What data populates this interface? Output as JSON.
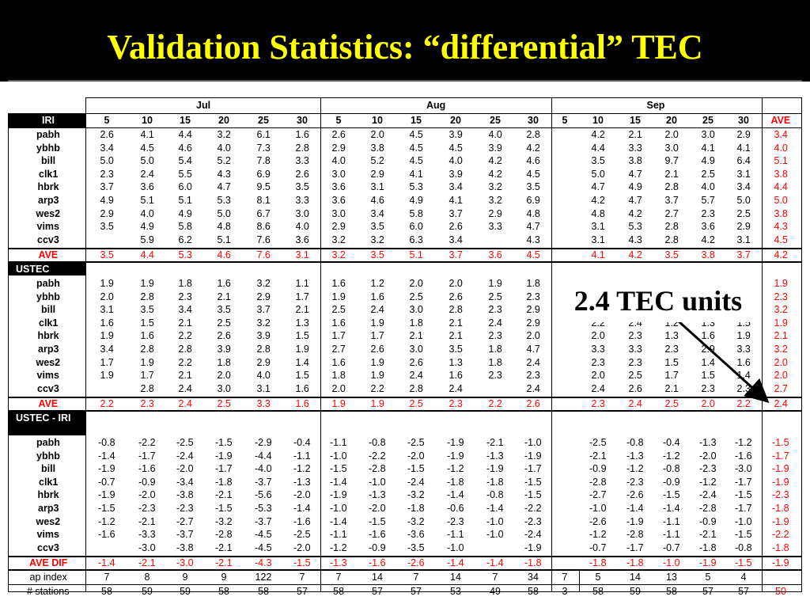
{
  "title": "Validation Statistics: “differential” TEC",
  "callout": "2.4 TEC units",
  "months": [
    "Jul",
    "Aug",
    "Sep"
  ],
  "days": {
    "jul": [
      "5",
      "10",
      "15",
      "20",
      "25",
      "30"
    ],
    "aug": [
      "5",
      "10",
      "15",
      "20",
      "25",
      "30"
    ],
    "sep": [
      "5",
      "10",
      "15",
      "20",
      "25",
      "30"
    ]
  },
  "ave_label": "AVE",
  "sections": [
    {
      "header": "IRI",
      "rows": [
        {
          "station": "pabh",
          "jul": [
            "2.6",
            "4.1",
            "4.4",
            "3.2",
            "6.1",
            "1.6"
          ],
          "aug": [
            "2.6",
            "2.0",
            "4.5",
            "3.9",
            "4.0",
            "2.8"
          ],
          "sep5": "",
          "sep": [
            "4.2",
            "2.1",
            "2.0",
            "3.0",
            "2.9"
          ],
          "ave": "3.4"
        },
        {
          "station": "ybhb",
          "jul": [
            "3.4",
            "4.5",
            "4.6",
            "4.0",
            "7.3",
            "2.8"
          ],
          "aug": [
            "2.9",
            "3.8",
            "4.5",
            "4.5",
            "3.9",
            "4.2"
          ],
          "sep5": "",
          "sep": [
            "4.4",
            "3.3",
            "3.0",
            "4.1",
            "4.1"
          ],
          "ave": "4.0"
        },
        {
          "station": "bill",
          "jul": [
            "5.0",
            "5.0",
            "5.4",
            "5.2",
            "7.8",
            "3.3"
          ],
          "aug": [
            "4.0",
            "5.2",
            "4.5",
            "4.0",
            "4.2",
            "4.6"
          ],
          "sep5": "",
          "sep": [
            "3.5",
            "3.8",
            "9.7",
            "4.9",
            "6.4"
          ],
          "ave": "5.1"
        },
        {
          "station": "clk1",
          "jul": [
            "2.3",
            "2.4",
            "5.5",
            "4.3",
            "6.9",
            "2.6"
          ],
          "aug": [
            "3.0",
            "2.9",
            "4.1",
            "3.9",
            "4.2",
            "4.5"
          ],
          "sep5": "",
          "sep": [
            "5.0",
            "4.7",
            "2.1",
            "2.5",
            "3.1"
          ],
          "ave": "3.8"
        },
        {
          "station": "hbrk",
          "jul": [
            "3.7",
            "3.6",
            "6.0",
            "4.7",
            "9.5",
            "3.5"
          ],
          "aug": [
            "3.6",
            "3.1",
            "5.3",
            "3.4",
            "3.2",
            "3.5"
          ],
          "sep5": "",
          "sep": [
            "4.7",
            "4.9",
            "2.8",
            "4.0",
            "3.4"
          ],
          "ave": "4.4"
        },
        {
          "station": "arp3",
          "jul": [
            "4.9",
            "5.1",
            "5.1",
            "5.3",
            "8.1",
            "3.3"
          ],
          "aug": [
            "3.6",
            "4.6",
            "4.9",
            "4.1",
            "3.2",
            "6.9"
          ],
          "sep5": "",
          "sep": [
            "4.2",
            "4.7",
            "3.7",
            "5.7",
            "5.0"
          ],
          "ave": "5.0"
        },
        {
          "station": "wes2",
          "jul": [
            "2.9",
            "4.0",
            "4.9",
            "5.0",
            "6.7",
            "3.0"
          ],
          "aug": [
            "3.0",
            "3.4",
            "5.8",
            "3.7",
            "2.9",
            "4.8"
          ],
          "sep5": "",
          "sep": [
            "4.8",
            "4.2",
            "2.7",
            "2.3",
            "2.5"
          ],
          "ave": "3.8"
        },
        {
          "station": "vims",
          "jul": [
            "3.5",
            "4.9",
            "5.8",
            "4.8",
            "8.6",
            "4.0"
          ],
          "aug": [
            "2.9",
            "3.5",
            "6.0",
            "2.6",
            "3.3",
            "4.7"
          ],
          "sep5": "",
          "sep": [
            "3.1",
            "5.3",
            "2.8",
            "3.6",
            "2.9"
          ],
          "ave": "4.3"
        },
        {
          "station": "ccv3",
          "jul": [
            "",
            "5.9",
            "6.2",
            "5.1",
            "7.6",
            "3.6"
          ],
          "aug": [
            "3.2",
            "3.2",
            "6.3",
            "3.4",
            "",
            "4.3"
          ],
          "sep5": "",
          "sep": [
            "3.1",
            "4.3",
            "2.8",
            "4.2",
            "3.1"
          ],
          "ave": "4.5"
        }
      ],
      "ave": {
        "label": "AVE",
        "jul": [
          "3.5",
          "4.4",
          "5.3",
          "4.6",
          "7.6",
          "3.1"
        ],
        "aug": [
          "3.2",
          "3.5",
          "5.1",
          "3.7",
          "3.6",
          "4.5"
        ],
        "sep5": "",
        "sep": [
          "4.1",
          "4.2",
          "3.5",
          "3.8",
          "3.7"
        ],
        "ave": "4.2"
      }
    },
    {
      "header": "USTEC",
      "rows": [
        {
          "station": "pabh",
          "jul": [
            "1.9",
            "1.9",
            "1.8",
            "1.6",
            "3.2",
            "1.1"
          ],
          "aug": [
            "1.6",
            "1.2",
            "2.0",
            "2.0",
            "1.9",
            "1.8"
          ],
          "sep5": "",
          "sep": [
            "",
            "",
            "",
            "",
            ""
          ],
          "ave": "1.9"
        },
        {
          "station": "ybhb",
          "jul": [
            "2.0",
            "2.8",
            "2.3",
            "2.1",
            "2.9",
            "1.7"
          ],
          "aug": [
            "1.9",
            "1.6",
            "2.5",
            "2.6",
            "2.5",
            "2.3"
          ],
          "sep5": "",
          "sep": [
            "",
            "",
            "",
            "",
            ""
          ],
          "ave": "2.3"
        },
        {
          "station": "bill",
          "jul": [
            "3.1",
            "3.5",
            "3.4",
            "3.5",
            "3.7",
            "2.1"
          ],
          "aug": [
            "2.5",
            "2.4",
            "3.0",
            "2.8",
            "2.3",
            "2.9"
          ],
          "sep5": "",
          "sep": [
            "",
            "",
            "",
            "",
            ""
          ],
          "ave": "3.2"
        },
        {
          "station": "clk1",
          "jul": [
            "1.6",
            "1.5",
            "2.1",
            "2.5",
            "3.2",
            "1.3"
          ],
          "aug": [
            "1.6",
            "1.9",
            "1.8",
            "2.1",
            "2.4",
            "2.9"
          ],
          "sep5": "",
          "sep": [
            "2.2",
            "2.4",
            "1.2",
            "1.3",
            "1.5"
          ],
          "ave": "1.9"
        },
        {
          "station": "hbrk",
          "jul": [
            "1.9",
            "1.6",
            "2.2",
            "2.6",
            "3.9",
            "1.5"
          ],
          "aug": [
            "1.7",
            "1.7",
            "2.1",
            "2.1",
            "2.3",
            "2.0"
          ],
          "sep5": "",
          "sep": [
            "2.0",
            "2.3",
            "1.3",
            "1.6",
            "1.9"
          ],
          "ave": "2.1"
        },
        {
          "station": "arp3",
          "jul": [
            "3.4",
            "2.8",
            "2.8",
            "3.9",
            "2.8",
            "1.9"
          ],
          "aug": [
            "2.7",
            "2.6",
            "3.0",
            "3.5",
            "1.8",
            "4.7"
          ],
          "sep5": "",
          "sep": [
            "3.3",
            "3.3",
            "2.3",
            "2.9",
            "3.3"
          ],
          "ave": "3.2"
        },
        {
          "station": "wes2",
          "jul": [
            "1.7",
            "1.9",
            "2.2",
            "1.8",
            "2.9",
            "1.4"
          ],
          "aug": [
            "1.6",
            "1.9",
            "2.6",
            "1.3",
            "1.8",
            "2.4"
          ],
          "sep5": "",
          "sep": [
            "2.3",
            "2.3",
            "1.5",
            "1.4",
            "1.6"
          ],
          "ave": "2.0"
        },
        {
          "station": "vims",
          "jul": [
            "1.9",
            "1.7",
            "2.1",
            "2.0",
            "4.0",
            "1.5"
          ],
          "aug": [
            "1.8",
            "1.9",
            "2.4",
            "1.6",
            "2.3",
            "2.3"
          ],
          "sep5": "",
          "sep": [
            "2.0",
            "2.5",
            "1.7",
            "1.5",
            "1.4"
          ],
          "ave": "2.0"
        },
        {
          "station": "ccv3",
          "jul": [
            "",
            "2.8",
            "2.4",
            "3.0",
            "3.1",
            "1.6"
          ],
          "aug": [
            "2.0",
            "2.2",
            "2.8",
            "2.4",
            "",
            "2.4"
          ],
          "sep5": "",
          "sep": [
            "2.4",
            "2.6",
            "2.1",
            "2.3",
            "2.3"
          ],
          "ave": "2.7"
        }
      ],
      "ave": {
        "label": "AVE",
        "jul": [
          "2.2",
          "2.3",
          "2.4",
          "2.5",
          "3.3",
          "1.6"
        ],
        "aug": [
          "1.9",
          "1.9",
          "2.5",
          "2.3",
          "2.2",
          "2.6"
        ],
        "sep5": "",
        "sep": [
          "2.3",
          "2.4",
          "2.5",
          "2.0",
          "2.2"
        ],
        "ave": "2.4"
      }
    },
    {
      "header": "USTEC - IRI",
      "rows": [
        {
          "station": "pabh",
          "jul": [
            "-0.8",
            "-2.2",
            "-2.5",
            "-1.5",
            "-2.9",
            "-0.4"
          ],
          "aug": [
            "-1.1",
            "-0.8",
            "-2.5",
            "-1.9",
            "-2.1",
            "-1.0"
          ],
          "sep5": "",
          "sep": [
            "-2.5",
            "-0.8",
            "-0.4",
            "-1.3",
            "-1.2"
          ],
          "ave": "-1.5"
        },
        {
          "station": "ybhb",
          "jul": [
            "-1.4",
            "-1.7",
            "-2.4",
            "-1.9",
            "-4.4",
            "-1.1"
          ],
          "aug": [
            "-1.0",
            "-2.2",
            "-2.0",
            "-1.9",
            "-1.3",
            "-1.9"
          ],
          "sep5": "",
          "sep": [
            "-2.1",
            "-1.3",
            "-1.2",
            "-2.0",
            "-1.6"
          ],
          "ave": "-1.7"
        },
        {
          "station": "bill",
          "jul": [
            "-1.9",
            "-1.6",
            "-2.0",
            "-1.7",
            "-4.0",
            "-1.2"
          ],
          "aug": [
            "-1.5",
            "-2.8",
            "-1.5",
            "-1.2",
            "-1.9",
            "-1.7"
          ],
          "sep5": "",
          "sep": [
            "-0.9",
            "-1.2",
            "-0.8",
            "-2.3",
            "-3.0"
          ],
          "ave": "-1.9"
        },
        {
          "station": "clk1",
          "jul": [
            "-0.7",
            "-0.9",
            "-3.4",
            "-1.8",
            "-3.7",
            "-1.3"
          ],
          "aug": [
            "-1.4",
            "-1.0",
            "-2.4",
            "-1.8",
            "-1.8",
            "-1.5"
          ],
          "sep5": "",
          "sep": [
            "-2.8",
            "-2.3",
            "-0.9",
            "-1.2",
            "-1.7"
          ],
          "ave": "-1.9"
        },
        {
          "station": "hbrk",
          "jul": [
            "-1.9",
            "-2.0",
            "-3.8",
            "-2.1",
            "-5.6",
            "-2.0"
          ],
          "aug": [
            "-1.9",
            "-1.3",
            "-3.2",
            "-1.4",
            "-0.8",
            "-1.5"
          ],
          "sep5": "",
          "sep": [
            "-2.7",
            "-2.6",
            "-1.5",
            "-2.4",
            "-1.5"
          ],
          "ave": "-2.3"
        },
        {
          "station": "arp3",
          "jul": [
            "-1.5",
            "-2.3",
            "-2.3",
            "-1.5",
            "-5.3",
            "-1.4"
          ],
          "aug": [
            "-1.0",
            "-2.0",
            "-1.8",
            "-0.6",
            "-1.4",
            "-2.2"
          ],
          "sep5": "",
          "sep": [
            "-1.0",
            "-1.4",
            "-1.4",
            "-2.8",
            "-1.7"
          ],
          "ave": "-1.8"
        },
        {
          "station": "wes2",
          "jul": [
            "-1.2",
            "-2.1",
            "-2.7",
            "-3.2",
            "-3.7",
            "-1.6"
          ],
          "aug": [
            "-1.4",
            "-1.5",
            "-3.2",
            "-2.3",
            "-1.0",
            "-2.3"
          ],
          "sep5": "",
          "sep": [
            "-2.6",
            "-1.9",
            "-1.1",
            "-0.9",
            "-1.0"
          ],
          "ave": "-1.9"
        },
        {
          "station": "vims",
          "jul": [
            "-1.6",
            "-3.3",
            "-3.7",
            "-2.8",
            "-4.5",
            "-2.5"
          ],
          "aug": [
            "-1.1",
            "-1.6",
            "-3.6",
            "-1.1",
            "-1.0",
            "-2.4"
          ],
          "sep5": "",
          "sep": [
            "-1.2",
            "-2.8",
            "-1.1",
            "-2.1",
            "-1.5"
          ],
          "ave": "-2.2"
        },
        {
          "station": "ccv3",
          "jul": [
            "",
            "-3.0",
            "-3.8",
            "-2.1",
            "-4.5",
            "-2.0"
          ],
          "aug": [
            "-1.2",
            "-0.9",
            "-3.5",
            "-1.0",
            "",
            "-1.9"
          ],
          "sep5": "",
          "sep": [
            "-0.7",
            "-1.7",
            "-0.7",
            "-1.8",
            "-0.8"
          ],
          "ave": "-1.8"
        }
      ],
      "ave": {
        "label": "AVE DIF",
        "jul": [
          "-1.4",
          "-2.1",
          "-3.0",
          "-2.1",
          "-4.3",
          "-1.5"
        ],
        "aug": [
          "-1.3",
          "-1.6",
          "-2.6",
          "-1.4",
          "-1.4",
          "-1.8"
        ],
        "sep5": "",
        "sep": [
          "-1.8",
          "-1.8",
          "-1.0",
          "-1.9",
          "-1.5"
        ],
        "ave": "-1.9"
      }
    }
  ],
  "footer": [
    {
      "label": "ap index",
      "jul": [
        "7",
        "8",
        "9",
        "9",
        "122",
        "7"
      ],
      "aug": [
        "7",
        "14",
        "7",
        "14",
        "7",
        "34"
      ],
      "sep5": "7",
      "sep": [
        "5",
        "14",
        "13",
        "5",
        "4"
      ],
      "ave": ""
    },
    {
      "label": "# stations",
      "jul": [
        "58",
        "59",
        "59",
        "58",
        "58",
        "57"
      ],
      "aug": [
        "58",
        "57",
        "57",
        "53",
        "49",
        "58"
      ],
      "sep5": "3",
      "sep": [
        "58",
        "59",
        "58",
        "57",
        "57"
      ],
      "ave": "50"
    }
  ]
}
